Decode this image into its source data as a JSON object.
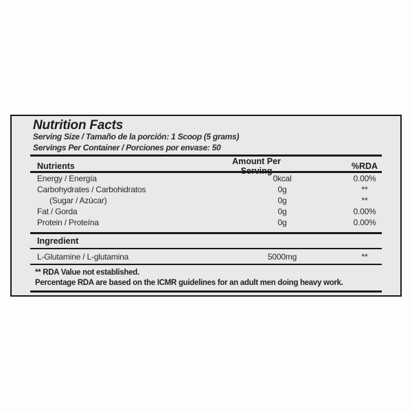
{
  "panel": {
    "title": "Nutrition Facts",
    "serving_size_line": "Serving Size / Tamaño de la porción: 1 Scoop (5 grams)",
    "servings_per_container_line": "Servings Per Container / Porciones por envase: 50",
    "table": {
      "headers": [
        "Nutrients",
        "Amount Per Serving",
        "%RDA"
      ],
      "rows": [
        {
          "name": "Energy / Energía",
          "amount": "0kcal",
          "rda": "0.00%"
        },
        {
          "name": "Carbohydrates / Carbohidratos",
          "amount": "0g",
          "rda": "**"
        },
        {
          "name": "(Sugar / Azúcar)",
          "amount": "0g",
          "rda": "**"
        },
        {
          "name": "Fat / Gorda",
          "amount": "0g",
          "rda": "0.00%"
        },
        {
          "name": "Protein / Proteína",
          "amount": "0g",
          "rda": "0.00%"
        }
      ]
    },
    "ingredient": {
      "header": "Ingredient",
      "rows": [
        {
          "name": "L-Glutamine / L-glutamina",
          "amount": "5000mg",
          "rda": "**"
        }
      ]
    },
    "footnotes": [
      "** RDA Value not established.",
      "Percentage RDA are based on the ICMR guidelines for an adult men doing heavy work."
    ],
    "colors": {
      "page_bg": "#fdfdfd",
      "panel_bg": "#e9e9ea",
      "ink": "#1b1b1b"
    }
  }
}
